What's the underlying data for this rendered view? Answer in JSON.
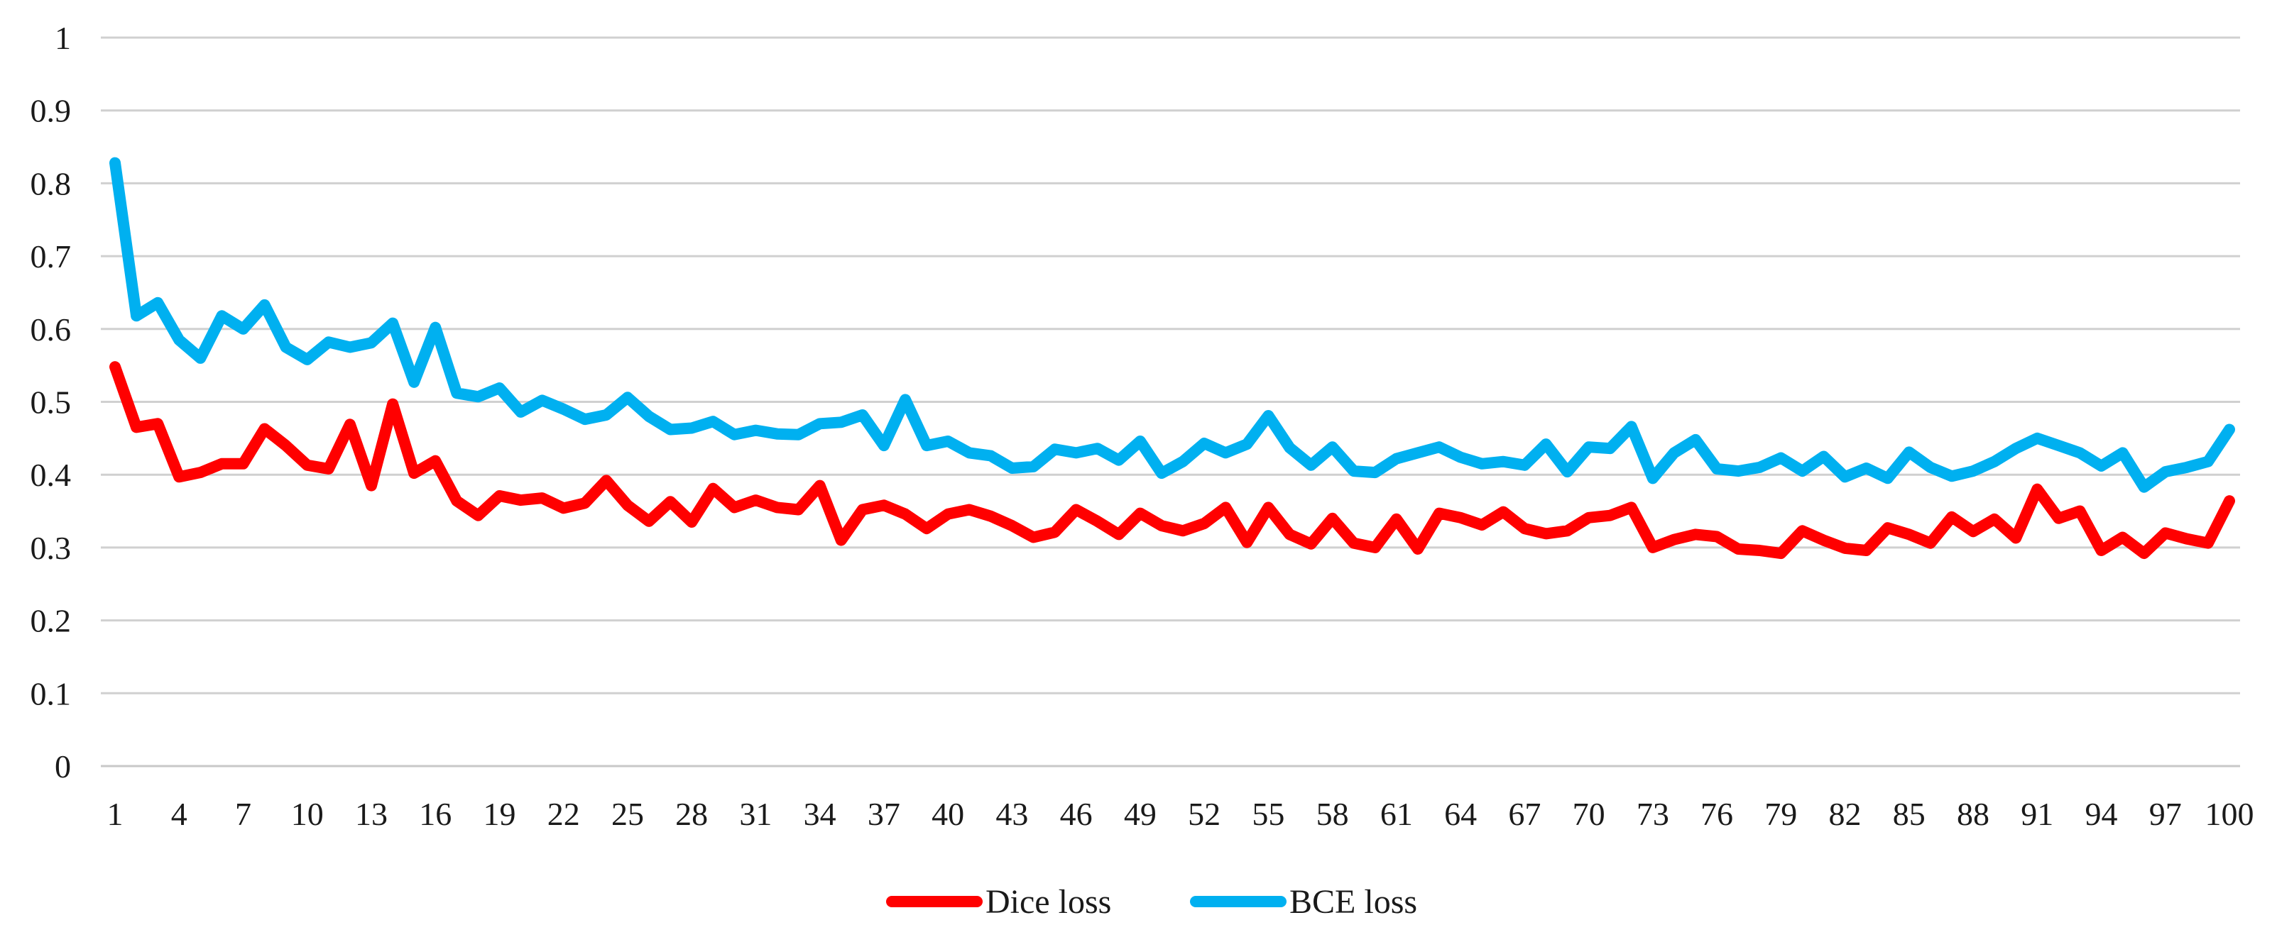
{
  "chart_data": {
    "type": "line",
    "title": "",
    "xlabel": "",
    "ylabel": "",
    "ylim": [
      0,
      1
    ],
    "yticks": [
      "0",
      "0.1",
      "0.2",
      "0.3",
      "0.4",
      "0.5",
      "0.6",
      "0.7",
      "0.8",
      "0.9",
      "1"
    ],
    "ytick_values": [
      0,
      0.1,
      0.2,
      0.3,
      0.4,
      0.5,
      0.6,
      0.7,
      0.8,
      0.9,
      1.0
    ],
    "xtick_labels": [
      "1",
      "4",
      "7",
      "10",
      "13",
      "16",
      "19",
      "22",
      "25",
      "28",
      "31",
      "34",
      "37",
      "40",
      "43",
      "46",
      "49",
      "52",
      "55",
      "58",
      "61",
      "64",
      "67",
      "70",
      "73",
      "76",
      "79",
      "82",
      "85",
      "88",
      "91",
      "94",
      "97",
      "100"
    ],
    "x_range": [
      1,
      100
    ],
    "grid": true,
    "legend_position": "bottom-center",
    "series": [
      {
        "name": "Dice loss",
        "color": "#ff0000",
        "values": [
          0.548,
          0.465,
          0.47,
          0.397,
          0.403,
          0.415,
          0.415,
          0.463,
          0.44,
          0.413,
          0.408,
          0.469,
          0.385,
          0.497,
          0.402,
          0.419,
          0.364,
          0.344,
          0.371,
          0.365,
          0.368,
          0.354,
          0.361,
          0.392,
          0.358,
          0.336,
          0.363,
          0.335,
          0.381,
          0.355,
          0.365,
          0.355,
          0.352,
          0.385,
          0.31,
          0.352,
          0.358,
          0.346,
          0.326,
          0.346,
          0.352,
          0.343,
          0.33,
          0.314,
          0.321,
          0.352,
          0.336,
          0.318,
          0.347,
          0.33,
          0.323,
          0.333,
          0.355,
          0.307,
          0.355,
          0.318,
          0.305,
          0.34,
          0.306,
          0.3,
          0.339,
          0.298,
          0.347,
          0.341,
          0.331,
          0.349,
          0.326,
          0.319,
          0.323,
          0.341,
          0.344,
          0.355,
          0.3,
          0.311,
          0.318,
          0.315,
          0.298,
          0.296,
          0.292,
          0.323,
          0.31,
          0.299,
          0.296,
          0.327,
          0.318,
          0.306,
          0.342,
          0.322,
          0.339,
          0.313,
          0.38,
          0.34,
          0.35,
          0.296,
          0.314,
          0.292,
          0.32,
          0.312,
          0.306,
          0.364
        ]
      },
      {
        "name": "BCE loss",
        "color": "#00b0f0",
        "values": [
          0.828,
          0.618,
          0.636,
          0.585,
          0.56,
          0.618,
          0.6,
          0.633,
          0.575,
          0.558,
          0.582,
          0.575,
          0.581,
          0.608,
          0.527,
          0.602,
          0.512,
          0.507,
          0.519,
          0.486,
          0.502,
          0.49,
          0.476,
          0.482,
          0.506,
          0.48,
          0.462,
          0.464,
          0.473,
          0.455,
          0.461,
          0.456,
          0.455,
          0.47,
          0.472,
          0.482,
          0.44,
          0.503,
          0.44,
          0.446,
          0.43,
          0.426,
          0.409,
          0.411,
          0.435,
          0.43,
          0.436,
          0.42,
          0.446,
          0.402,
          0.418,
          0.443,
          0.43,
          0.442,
          0.481,
          0.437,
          0.413,
          0.438,
          0.405,
          0.403,
          0.422,
          0.43,
          0.438,
          0.424,
          0.415,
          0.418,
          0.413,
          0.442,
          0.404,
          0.438,
          0.436,
          0.466,
          0.395,
          0.43,
          0.448,
          0.408,
          0.405,
          0.41,
          0.423,
          0.405,
          0.425,
          0.397,
          0.409,
          0.395,
          0.431,
          0.41,
          0.398,
          0.405,
          0.418,
          0.436,
          0.45,
          0.44,
          0.43,
          0.412,
          0.43,
          0.383,
          0.404,
          0.41,
          0.418,
          0.462
        ]
      }
    ]
  }
}
